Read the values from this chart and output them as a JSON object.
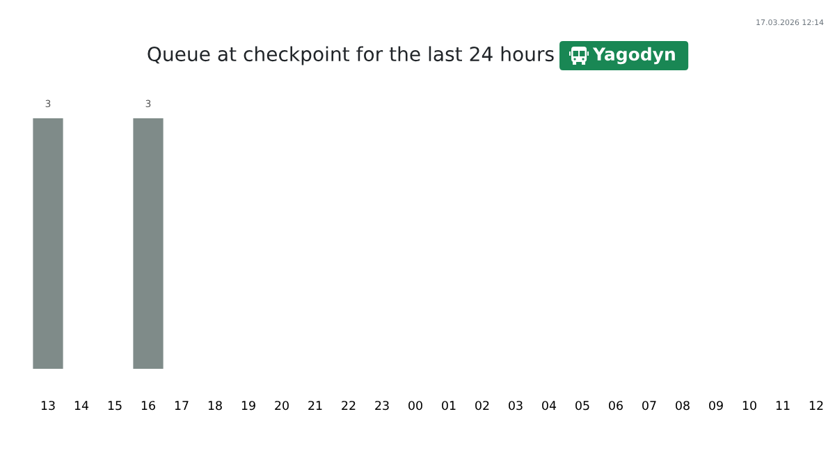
{
  "chart_data": {
    "type": "bar",
    "title": "Queue at checkpoint for the last 24 hours",
    "subtitle": "Yagodyn",
    "annotations": [
      "17.03.2026 12:14"
    ],
    "categories": [
      "13",
      "14",
      "15",
      "16",
      "17",
      "18",
      "19",
      "20",
      "21",
      "22",
      "23",
      "00",
      "01",
      "02",
      "03",
      "04",
      "05",
      "06",
      "07",
      "08",
      "09",
      "10",
      "11",
      "12"
    ],
    "values": [
      3,
      null,
      null,
      3,
      null,
      null,
      null,
      null,
      null,
      null,
      null,
      null,
      null,
      null,
      null,
      null,
      null,
      null,
      null,
      null,
      null,
      null,
      null,
      null
    ],
    "value_labels": [
      "3",
      null,
      null,
      "3",
      null,
      null,
      null,
      null,
      null,
      null,
      null,
      null,
      null,
      null,
      null,
      null,
      null,
      null,
      null,
      null,
      null,
      null,
      null,
      null
    ],
    "color": "#7f8b89",
    "tick_labels": "x"
  }
}
